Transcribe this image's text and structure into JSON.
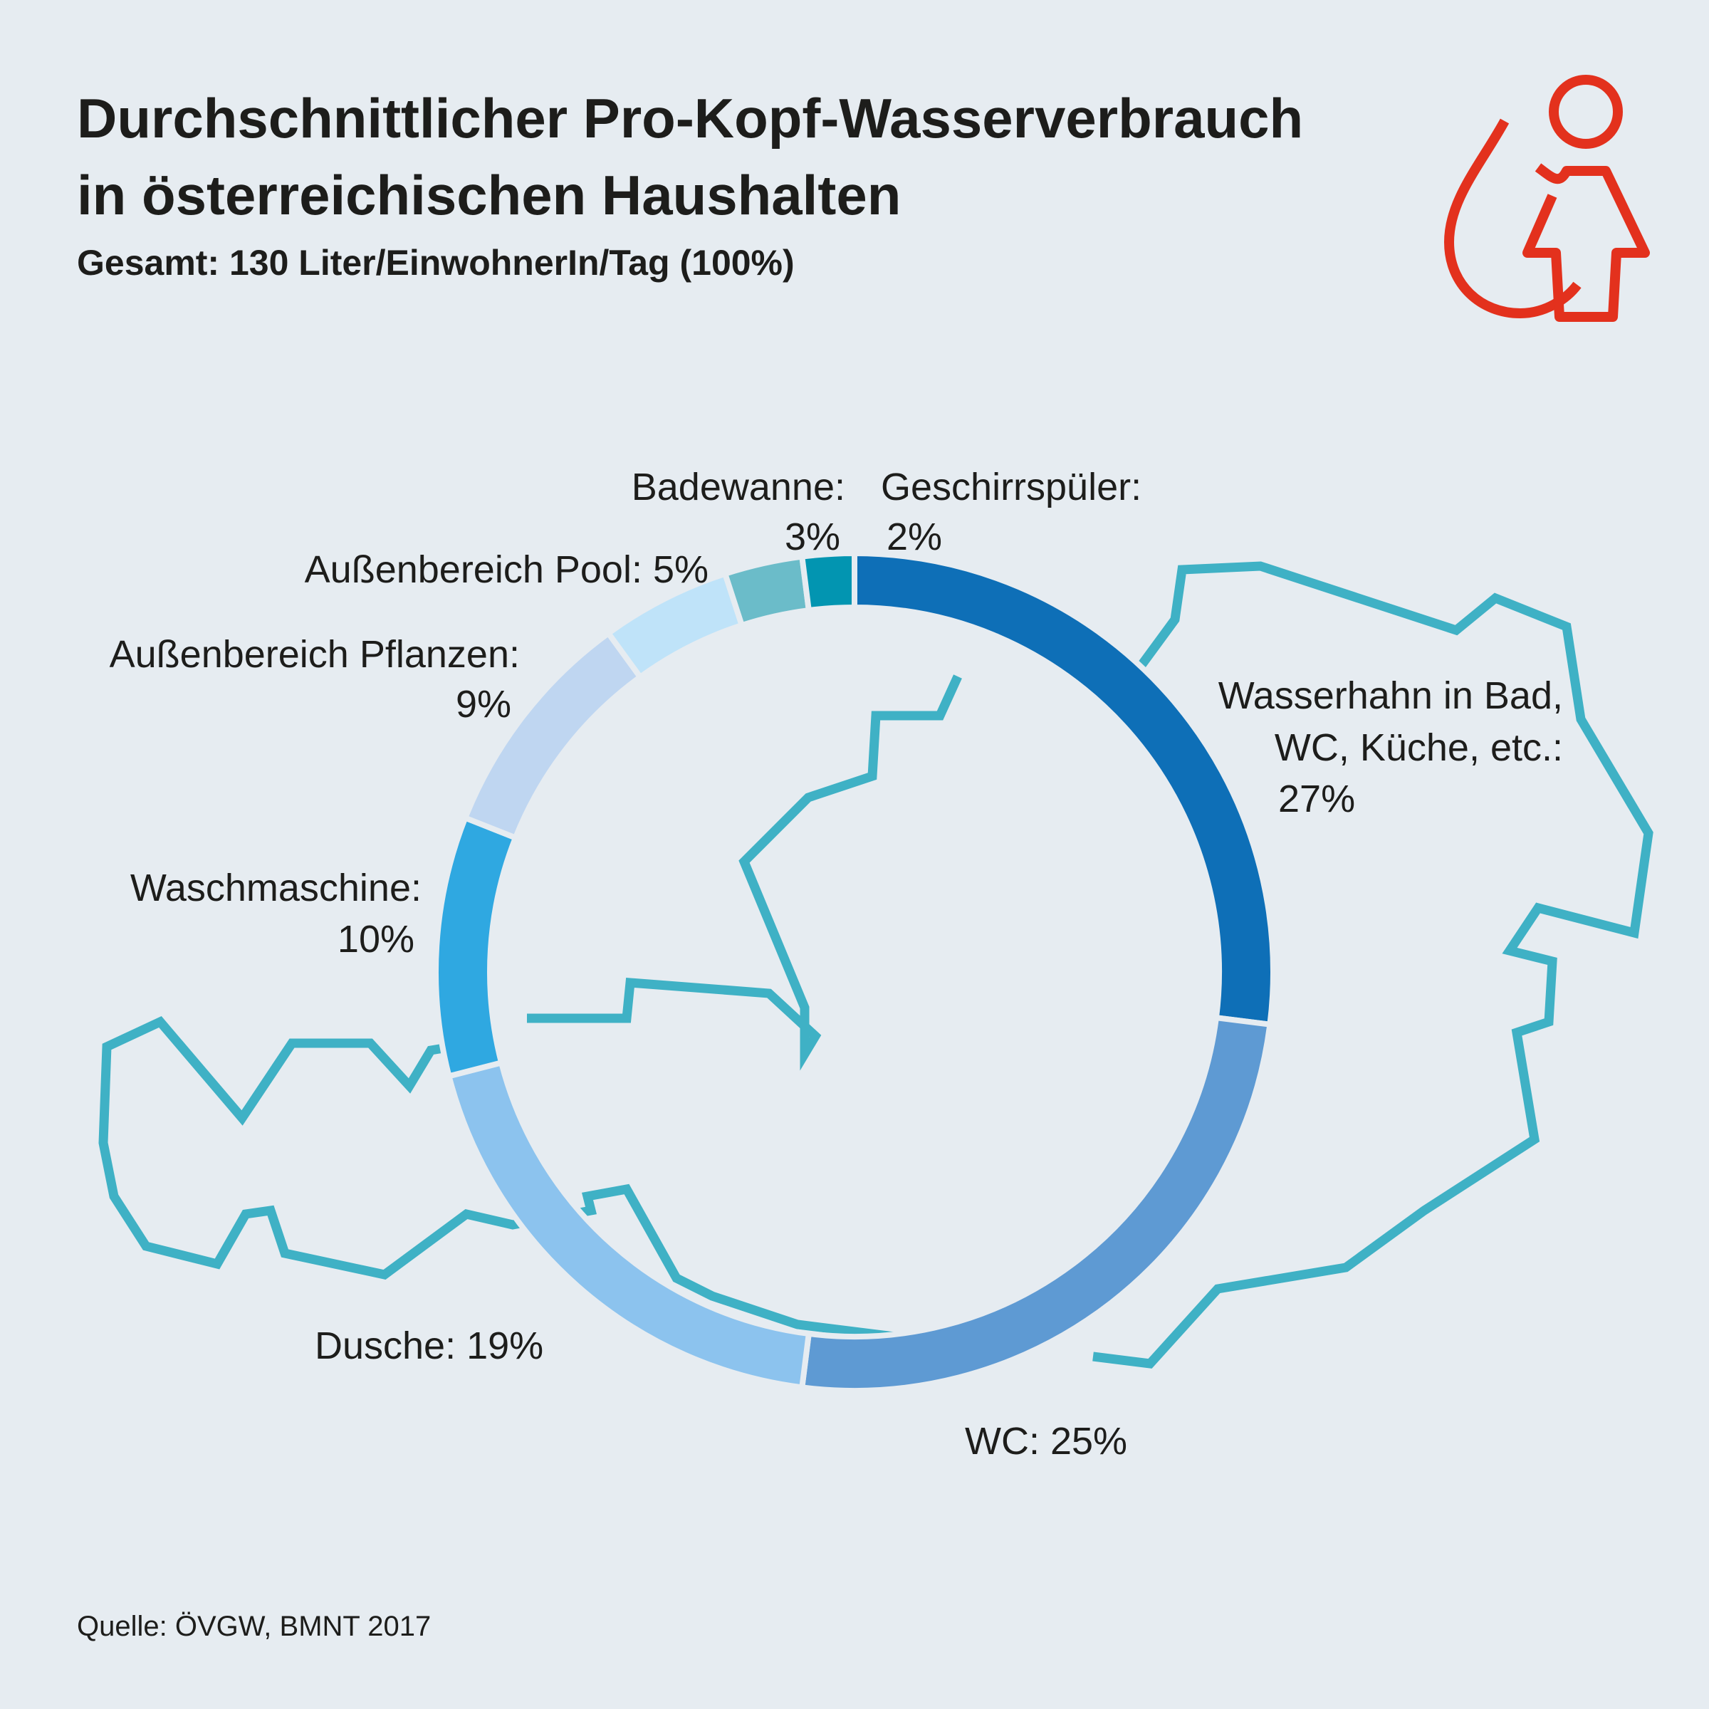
{
  "header": {
    "title_line1": "Durchschnittlicher Pro-Kopf-Wasserverbrauch",
    "title_line2": "in österreichischen Haushalten",
    "subtitle": "Gesamt: 130 Liter/EinwohnerIn/Tag (100%)"
  },
  "logo": {
    "icon": "water-drop-person-icon",
    "color": "#e3311d"
  },
  "background_shape": {
    "icon": "austria-map-outline-icon",
    "color": "#3fb1c5"
  },
  "chart_data": {
    "type": "pie",
    "style": "donut",
    "start": "top-center",
    "direction": "clockwise",
    "slices": [
      {
        "label": "Wasserhahn in Bad, WC, Küche, etc.:",
        "value": 27,
        "value_label": "27%",
        "color": "#0e6fb7"
      },
      {
        "label": "WC:",
        "value": 25,
        "value_label": "25%",
        "color": "#5e9ad3"
      },
      {
        "label": "Dusche:",
        "value": 19,
        "value_label": "19%",
        "color": "#8cc3ee"
      },
      {
        "label": "Waschmaschine:",
        "value": 10,
        "value_label": "10%",
        "color": "#2fa8e1"
      },
      {
        "label": "Außenbereich Pflanzen:",
        "value": 9,
        "value_label": "9%",
        "color": "#bfd6f1"
      },
      {
        "label": "Außenbereich Pool:",
        "value": 5,
        "value_label": "5%",
        "color": "#bfe3f9"
      },
      {
        "label": "Badewanne:",
        "value": 3,
        "value_label": "3%",
        "color": "#6bbcc9"
      },
      {
        "label": "Geschirrspüler:",
        "value": 2,
        "value_label": "2%",
        "color": "#0295b1"
      }
    ]
  },
  "footer": {
    "source": "Quelle: ÖVGW, BMNT 2017"
  }
}
